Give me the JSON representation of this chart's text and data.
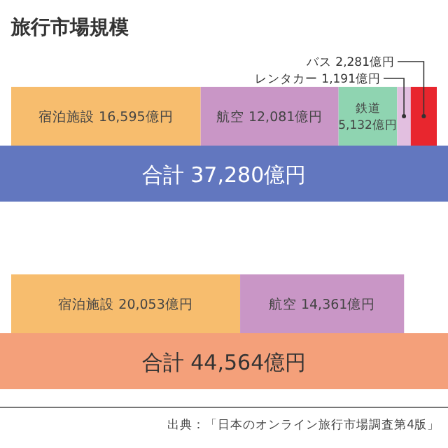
{
  "chart_data": {
    "type": "bar",
    "orientation": "horizontal",
    "stacked": true,
    "title": "旅行市場規模",
    "categories": [
      null,
      null
    ],
    "series": [
      {
        "name": "宿泊施設",
        "color": "#f7bd6e",
        "values": [
          16595,
          20053
        ],
        "value_labels": [
          "16,595億円",
          "20,053億円"
        ]
      },
      {
        "name": "航空",
        "color": "#c996c6",
        "values": [
          12081,
          14361
        ],
        "value_labels": [
          "12,081億円",
          "14,361億円"
        ]
      },
      {
        "name": "鉄道",
        "color": "#8fd4b1",
        "values": [
          5132,
          null
        ],
        "value_labels": [
          "5,132億円",
          null
        ]
      },
      {
        "name": "レンタカー",
        "color": "#e2bfe0",
        "values": [
          1191,
          null
        ],
        "value_labels": [
          "1,191億円",
          null
        ]
      },
      {
        "name": "バス",
        "color": "#e8262e",
        "values": [
          2281,
          null
        ],
        "value_labels": [
          "2,281億円",
          null
        ]
      }
    ],
    "totals": [
      "合計 37,280億円",
      "合計 44,564億円"
    ],
    "annotations": [
      "出典：「日本のオンライン旅行市場調査第4版」"
    ]
  }
}
